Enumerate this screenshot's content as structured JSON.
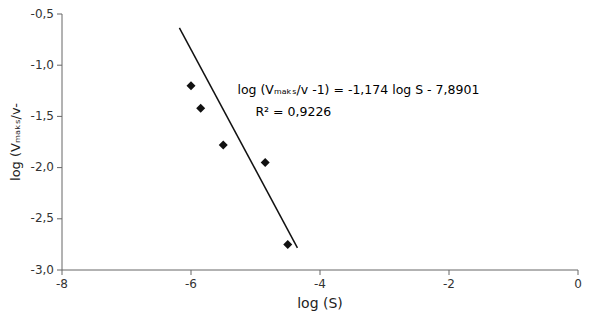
{
  "chart_data": {
    "type": "scatter",
    "x_label": "log (S)",
    "y_label": "log (Vₘₐₖₛ/v-",
    "series": [
      {
        "type": "scatter",
        "marker": "diamond",
        "color": "#111111",
        "x": [
          -6.0,
          -5.85,
          -5.5,
          -4.85,
          -4.5
        ],
        "values": [
          -1.2,
          -1.42,
          -1.78,
          -1.95,
          -2.75
        ]
      },
      {
        "type": "line",
        "line_style": "solid",
        "color": "#111111",
        "x": [
          -6.18,
          -4.35
        ],
        "values": [
          -0.63478,
          -2.7832
        ]
      }
    ],
    "annotations": [
      "log (Vₘₐₖₛ/v -1) = -1,174 log S - 7,8901",
      "R² = 0,9226"
    ],
    "xlim": [
      -8,
      0
    ],
    "ylim": [
      -3.0,
      -0.5
    ],
    "xticks": [
      -8,
      -6,
      -4,
      -2,
      0
    ],
    "yticks": [
      {
        "value": -3.0,
        "label": "-3,0"
      },
      {
        "value": -2.5,
        "label": "-2,5"
      },
      {
        "value": -2.0,
        "label": "-2,0"
      },
      {
        "value": -1.5,
        "label": "-1,5"
      },
      {
        "value": -1.0,
        "label": "-1,0"
      },
      {
        "value": -0.5,
        "label": "-0,5"
      }
    ]
  }
}
